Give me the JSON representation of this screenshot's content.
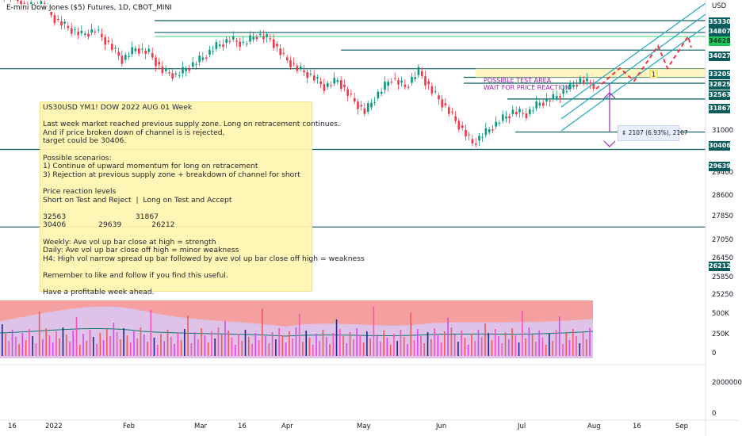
{
  "ticker": "E-mini Dow Jones ($5) Futures, 1D, CBOT_MINI",
  "note": {
    "lines": [
      "US30USD YM1! DOW 2022 AUG 01 Week",
      "",
      "Last week market reached previous supply zone. Long on retracement continues.",
      "And if price broken down of channel is is rejected,",
      "target could be 30406.",
      "",
      "Possible scenarios:",
      "1) Continue of upward momentum for long on retracement",
      "3) Rejection at previous supply zone + breakdown of channel for short",
      "",
      "Price reaction levels",
      "Short on Test and Reject  |  Long on Test and Accept",
      "",
      "32563                              31867",
      "30406              29639             26212",
      "",
      "Weekly: Ave vol up bar close at high = strength",
      "Daily: Ave vol up bar close off high = minor weakness",
      "H4: High vol narrow spread up bar followed by ave vol up bar close off high = weakness",
      "",
      "Remember to like and follow if you find this useful.",
      "",
      "Have a profitable week ahead."
    ]
  },
  "annotations": {
    "test_area": "POSSIBLE TEST AREA\nWAIT FOR PRICE REACTION",
    "marker": "1",
    "measure": "2107 (6.93%), 2107"
  },
  "chart_data": {
    "type": "candlestick",
    "price_axis": {
      "currency": "USD",
      "ticks": [
        31000,
        29400,
        28600,
        27850,
        27050,
        26450,
        25850,
        25250
      ],
      "level_tags": [
        35330,
        34807,
        34628,
        34027,
        33205,
        32825,
        32563,
        31867,
        30406,
        29639,
        26212
      ]
    },
    "volume_axis": {
      "ticks": [
        "500K",
        "250K",
        "0"
      ],
      "lower_ticks": [
        "2000000",
        "0"
      ]
    },
    "x_ticks": [
      "16",
      "2022",
      "Feb",
      "Mar",
      "16",
      "Apr",
      "May",
      "Jun",
      "Jul",
      "Aug",
      "16",
      "Sep"
    ],
    "levels": [
      35330,
      34807,
      34628,
      34027,
      33205,
      32825,
      32563,
      31867,
      30406,
      29639,
      26212
    ],
    "colors": {
      "up": "#089981",
      "down": "#f23645",
      "level": "#0a5c5c",
      "channel": "#22a6c0",
      "projection": "#f23645",
      "volume_band": "#f5a0a0",
      "volume_fill": "#d9c8f5"
    },
    "measure_range": 2107,
    "closes_approx": [
      36300,
      35900,
      36100,
      35400,
      35000,
      34700,
      34900,
      34300,
      33600,
      34100,
      33900,
      33100,
      32900,
      33300,
      33700,
      34200,
      34500,
      34300,
      34700,
      34500,
      33700,
      33200,
      32900,
      32400,
      32700,
      31900,
      31300,
      32100,
      32800,
      32400,
      33100,
      32200,
      31500,
      30700,
      29900,
      30400,
      30900,
      31300,
      31200,
      31700,
      31900,
      32300,
      32700,
      32500,
      32900
    ]
  }
}
